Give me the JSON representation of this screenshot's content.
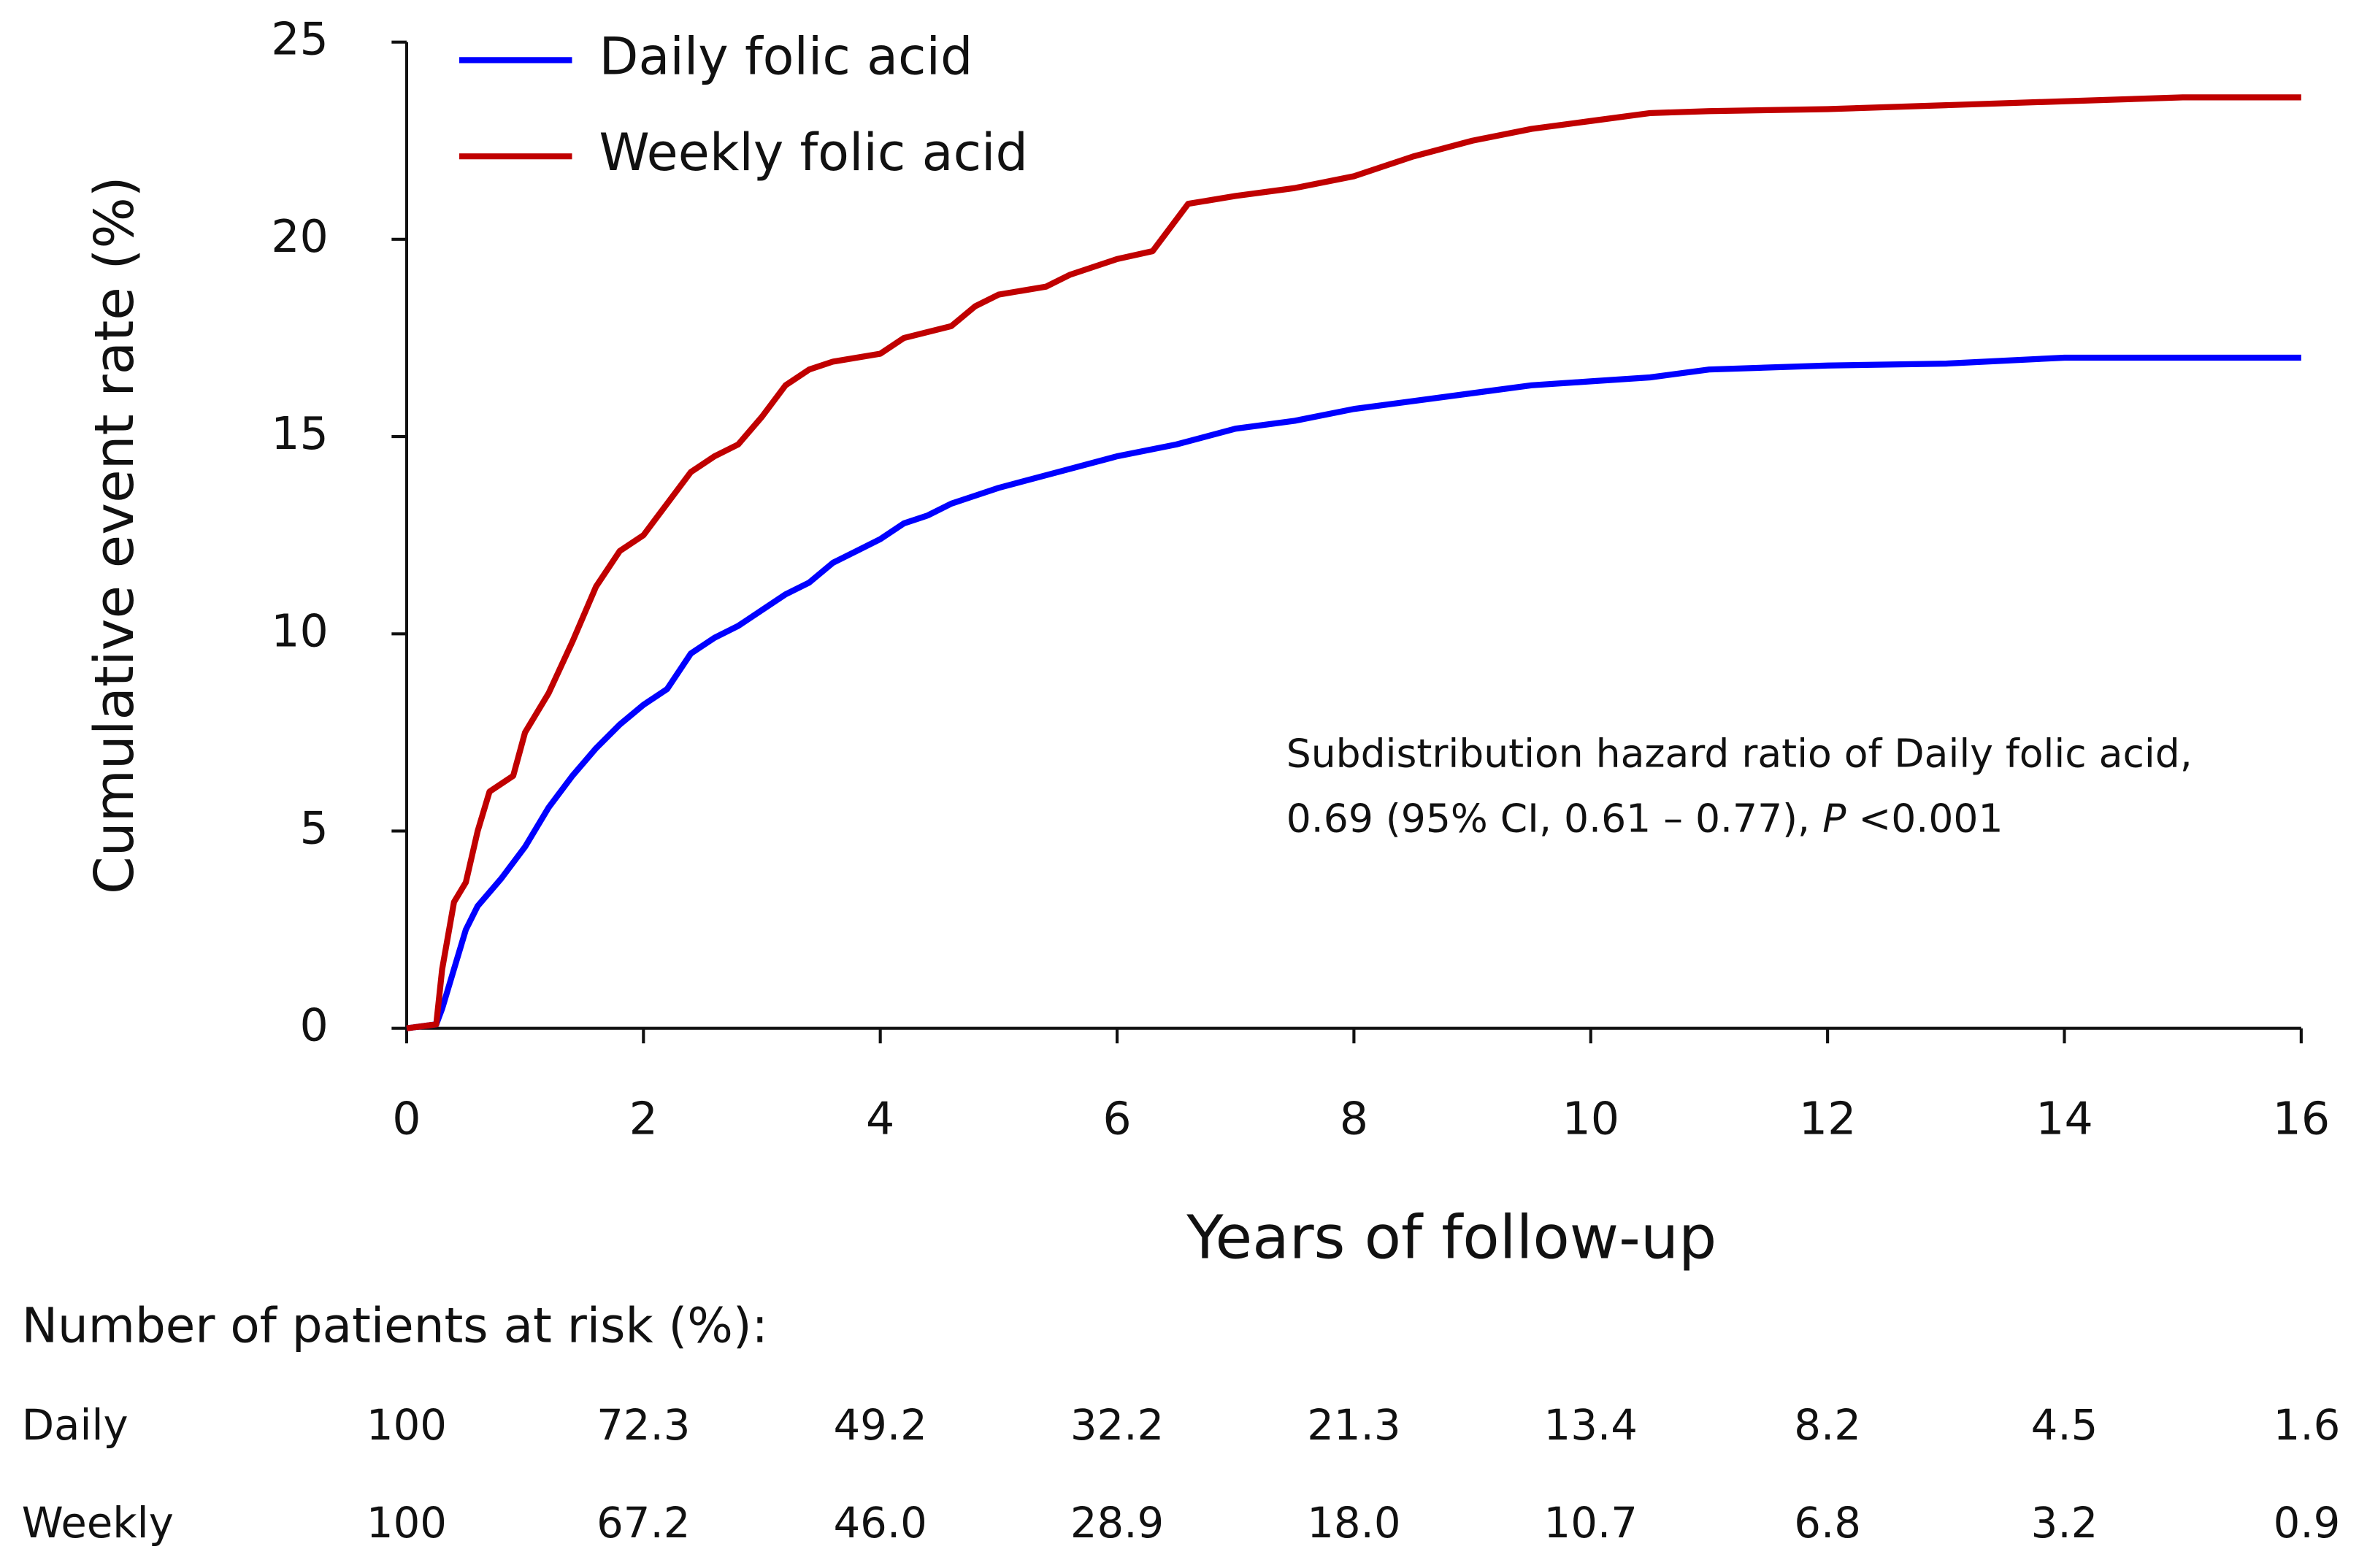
{
  "chart_data": {
    "type": "line",
    "xlabel": "Years of follow-up",
    "ylabel": "Cumulative event rate (%)",
    "xlim": [
      0,
      16
    ],
    "ylim": [
      0,
      25
    ],
    "xticks": [
      0,
      2,
      4,
      6,
      8,
      10,
      12,
      14,
      16
    ],
    "yticks": [
      0,
      5,
      10,
      15,
      20,
      25
    ],
    "legend": "upper left",
    "series": [
      {
        "name": "Daily folic acid",
        "color": "#0000ff",
        "x": [
          0,
          0.25,
          0.3,
          0.4,
          0.5,
          0.6,
          0.8,
          1,
          1.2,
          1.4,
          1.6,
          1.8,
          2,
          2.2,
          2.4,
          2.6,
          2.8,
          3,
          3.2,
          3.4,
          3.6,
          3.8,
          4,
          4.2,
          4.4,
          4.6,
          4.8,
          5,
          5.5,
          6,
          6.5,
          7,
          7.5,
          8,
          8.5,
          9,
          9.5,
          10,
          10.5,
          11,
          12,
          13,
          14,
          15,
          16
        ],
        "values": [
          0,
          0.1,
          0.5,
          1.5,
          2.5,
          3.1,
          3.8,
          4.6,
          5.6,
          6.4,
          7.1,
          7.7,
          8.2,
          8.6,
          9.5,
          9.9,
          10.2,
          10.6,
          11,
          11.3,
          11.8,
          12.1,
          12.4,
          12.8,
          13,
          13.3,
          13.5,
          13.7,
          14.1,
          14.5,
          14.8,
          15.2,
          15.4,
          15.7,
          15.9,
          16.1,
          16.3,
          16.4,
          16.5,
          16.7,
          16.8,
          16.85,
          17,
          17,
          17
        ]
      },
      {
        "name": "Weekly folic acid",
        "color": "#c00000",
        "x": [
          0,
          0.25,
          0.3,
          0.4,
          0.5,
          0.6,
          0.7,
          0.9,
          1,
          1.2,
          1.4,
          1.6,
          1.8,
          2,
          2.2,
          2.4,
          2.6,
          2.8,
          3,
          3.2,
          3.4,
          3.6,
          4,
          4.2,
          4.6,
          4.8,
          5,
          5.4,
          5.6,
          6,
          6.3,
          6.6,
          7,
          7.5,
          8,
          8.5,
          9,
          9.5,
          10,
          10.5,
          11,
          12,
          13,
          14,
          15,
          16
        ],
        "values": [
          0,
          0.1,
          1.5,
          3.2,
          3.7,
          5,
          6,
          6.4,
          7.5,
          8.5,
          9.8,
          11.2,
          12.1,
          12.5,
          13.3,
          14.1,
          14.5,
          14.8,
          15.5,
          16.3,
          16.7,
          16.9,
          17.1,
          17.5,
          17.8,
          18.3,
          18.6,
          18.8,
          19.1,
          19.5,
          19.7,
          20.9,
          21.1,
          21.3,
          21.6,
          22.1,
          22.5,
          22.8,
          23,
          23.2,
          23.25,
          23.3,
          23.4,
          23.5,
          23.6,
          23.6
        ]
      }
    ],
    "annotation": {
      "line1": "Subdistribution hazard ratio of Daily folic acid,",
      "line2": [
        "0.69 (95% CI, 0.61 – 0.77), ",
        "P",
        " <0.001"
      ]
    },
    "risk_table": {
      "title": "Number of patients at risk (%):",
      "rows": [
        {
          "label": "Daily",
          "values": [
            "100",
            "72.3",
            "49.2",
            "32.2",
            "21.3",
            "13.4",
            "8.2",
            "4.5",
            "1.6"
          ]
        },
        {
          "label": "Weekly",
          "values": [
            "100",
            "67.2",
            "46.0",
            "28.9",
            "18.0",
            "10.7",
            "6.8",
            "3.2",
            "0.9"
          ]
        }
      ]
    }
  }
}
